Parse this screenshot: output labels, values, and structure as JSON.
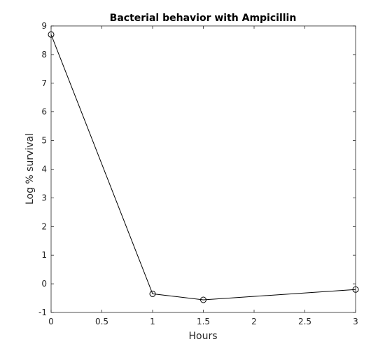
{
  "chart_data": {
    "type": "line",
    "title": "Bacterial behavior with Ampicillin",
    "xlabel": "Hours",
    "ylabel": "Log % survival",
    "xlim": [
      0,
      3
    ],
    "ylim": [
      -1,
      9
    ],
    "xticks": [
      0,
      0.5,
      1,
      1.5,
      2,
      2.5,
      3
    ],
    "xtick_labels": [
      "0",
      "0.5",
      "1",
      "1.5",
      "2",
      "2.5",
      "3"
    ],
    "yticks": [
      -1,
      0,
      1,
      2,
      3,
      4,
      5,
      6,
      7,
      8,
      9
    ],
    "ytick_labels": [
      "-1",
      "0",
      "1",
      "2",
      "3",
      "4",
      "5",
      "6",
      "7",
      "8",
      "9"
    ],
    "grid": false,
    "marker": "circle-open",
    "series": [
      {
        "x": [
          0,
          1,
          1.5,
          3
        ],
        "y": [
          8.7,
          -0.35,
          -0.56,
          -0.2
        ],
        "color": "#000000"
      }
    ]
  }
}
